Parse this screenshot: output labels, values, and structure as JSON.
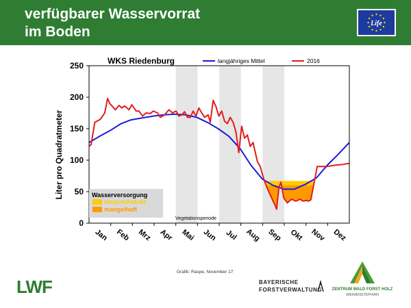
{
  "header": {
    "title_line1": "verfügbarer Wasservorrat",
    "title_line2": "im Boden",
    "background": "#2e7d32",
    "eu_logo_text": "Life"
  },
  "footer": {
    "credit": "Grafik: Raspe, November 17",
    "lwf_logo": "LWF",
    "bf_line1": "BAYERISCHE",
    "bf_line2": "FORSTVERWALTUNG",
    "zwfh_line1": "ZENTRUM WALD FORST HOLZ",
    "zwfh_line2": "WEIHENSTEPHAN"
  },
  "chart_data": {
    "type": "line",
    "title": "WKS Riedenburg",
    "ylabel": "Liter pro Quadratmeter",
    "xlabel": "",
    "ylim": [
      0,
      250
    ],
    "xlim": [
      0,
      365
    ],
    "yticks": [
      0,
      50,
      100,
      150,
      200,
      250
    ],
    "months": [
      "Jan",
      "Feb",
      "Mrz",
      "Apr",
      "Mai",
      "Jun",
      "Jul",
      "Aug",
      "Sep",
      "Okt",
      "Nov",
      "Dez"
    ],
    "shaded_months": [
      "Mai",
      "Jul",
      "Sep"
    ],
    "shade_color": "#e6e6e6",
    "vegetation_label": "Vegetationsperiode",
    "legend_position": "top",
    "grid": false,
    "thresholds": [
      {
        "name": "eingeschränkt",
        "value": 67,
        "color": "#ffcc00"
      },
      {
        "name": "mangelhaft",
        "value": 60,
        "color": "#ff9900"
      }
    ],
    "water_legend": {
      "title": "Wasserversorgung",
      "items": [
        {
          "label": "eingeschränkt",
          "color": "#ffcc00"
        },
        {
          "label": "mangelhaft",
          "color": "#ff9900"
        }
      ]
    },
    "series": [
      {
        "name": "langjähriges Mittel",
        "color": "#1a1adb",
        "x": [
          0,
          15,
          31,
          45,
          59,
          74,
          90,
          105,
          120,
          135,
          151,
          166,
          181,
          196,
          212,
          227,
          243,
          258,
          273,
          288,
          304,
          319,
          334,
          350,
          365
        ],
        "y": [
          128,
          138,
          148,
          158,
          164,
          167,
          170,
          172,
          173,
          172,
          168,
          160,
          150,
          138,
          118,
          92,
          70,
          60,
          54,
          54,
          62,
          72,
          92,
          110,
          128
        ]
      },
      {
        "name": "2016",
        "color": "#e01c1c",
        "x": [
          0,
          3,
          8,
          16,
          22,
          26,
          29,
          33,
          37,
          42,
          46,
          50,
          56,
          60,
          66,
          70,
          75,
          80,
          86,
          90,
          96,
          100,
          106,
          112,
          117,
          122,
          126,
          130,
          134,
          138,
          142,
          146,
          150,
          154,
          158,
          162,
          167,
          170,
          174,
          178,
          182,
          186,
          190,
          194,
          198,
          202,
          206,
          210,
          214,
          218,
          222,
          226,
          230,
          236,
          240,
          245,
          250,
          254,
          258,
          261,
          263,
          266,
          269,
          273,
          278,
          284,
          290,
          296,
          300,
          305,
          308,
          311,
          320,
          334,
          345,
          355,
          365
        ],
        "y": [
          122,
          125,
          160,
          165,
          175,
          198,
          190,
          185,
          180,
          187,
          183,
          186,
          180,
          188,
          178,
          178,
          170,
          175,
          174,
          178,
          175,
          168,
          172,
          180,
          175,
          178,
          170,
          172,
          177,
          168,
          168,
          178,
          170,
          183,
          175,
          168,
          172,
          160,
          195,
          185,
          170,
          178,
          162,
          158,
          168,
          160,
          145,
          112,
          154,
          135,
          140,
          122,
          128,
          98,
          90,
          70,
          55,
          45,
          35,
          28,
          22,
          55,
          65,
          40,
          32,
          38,
          35,
          38,
          35,
          36,
          35,
          37,
          90,
          90,
          92,
          93,
          95
        ]
      }
    ]
  }
}
